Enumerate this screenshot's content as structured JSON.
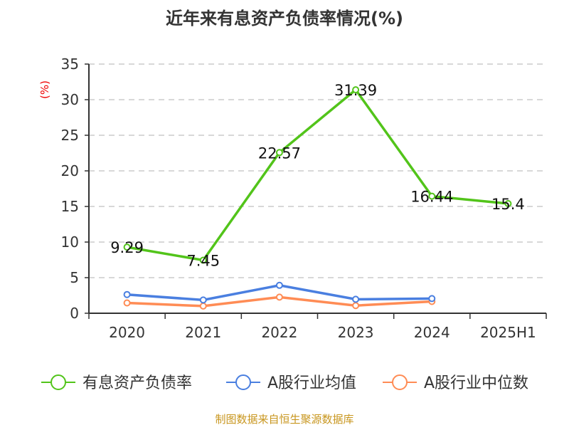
{
  "chart_data": {
    "type": "line",
    "title": "近年来有息资产负债率情况(%)",
    "ylabel": "(%)",
    "xlabel": "",
    "ylim": [
      0,
      35
    ],
    "yticks": [
      0,
      5,
      10,
      15,
      20,
      25,
      30,
      35
    ],
    "grid": true,
    "legend_position": "bottom",
    "categories": [
      "2020",
      "2021",
      "2022",
      "2023",
      "2024",
      "2025H1"
    ],
    "series": [
      {
        "name": "有息资产负债率",
        "color": "#52c41a",
        "values": [
          9.29,
          7.45,
          22.57,
          31.39,
          16.44,
          15.4
        ],
        "labels": true
      },
      {
        "name": "A股行业均值",
        "color": "#4a7fe0",
        "values": [
          2.63,
          1.86,
          3.92,
          1.96,
          2.06,
          null
        ],
        "labels": false
      },
      {
        "name": "A股行业中位数",
        "color": "#ff8c55",
        "values": [
          1.45,
          1.01,
          2.26,
          1.08,
          1.65,
          null
        ],
        "labels": false
      }
    ],
    "source": "制图数据来自恒生聚源数据库"
  }
}
